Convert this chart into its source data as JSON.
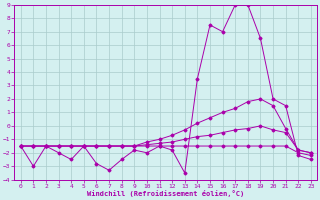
{
  "xlabel": "Windchill (Refroidissement éolien,°C)",
  "background_color": "#d4f0f0",
  "line_color": "#aa00aa",
  "grid_color": "#aacccc",
  "xlim": [
    -0.5,
    23.5
  ],
  "ylim": [
    -4,
    9
  ],
  "xticks": [
    0,
    1,
    2,
    3,
    4,
    5,
    6,
    7,
    8,
    9,
    10,
    11,
    12,
    13,
    14,
    15,
    16,
    17,
    18,
    19,
    20,
    21,
    22,
    23
  ],
  "yticks": [
    -4,
    -3,
    -2,
    -1,
    0,
    1,
    2,
    3,
    4,
    5,
    6,
    7,
    8,
    9
  ],
  "line1_x": [
    0,
    1,
    2,
    3,
    4,
    5,
    6,
    7,
    8,
    9,
    10,
    11,
    12,
    13,
    14,
    15,
    16,
    17,
    18,
    19,
    20,
    21,
    22,
    23
  ],
  "line1_y": [
    -1.5,
    -3.0,
    -1.5,
    -2.0,
    -2.5,
    -1.5,
    -2.8,
    -3.3,
    -2.5,
    -1.8,
    -2.0,
    -1.5,
    -1.8,
    -3.5,
    3.5,
    7.5,
    7.0,
    9.0,
    9.0,
    6.5,
    2.0,
    1.5,
    -2.2,
    -2.5
  ],
  "line2_x": [
    0,
    1,
    2,
    3,
    4,
    5,
    6,
    7,
    8,
    9,
    10,
    11,
    12,
    13,
    14,
    15,
    16,
    17,
    18,
    19,
    20,
    21,
    22,
    23
  ],
  "line2_y": [
    -1.5,
    -1.5,
    -1.5,
    -1.5,
    -1.5,
    -1.5,
    -1.5,
    -1.5,
    -1.5,
    -1.5,
    -1.2,
    -1.0,
    -0.7,
    -0.3,
    0.2,
    0.6,
    1.0,
    1.3,
    1.8,
    2.0,
    1.5,
    -0.2,
    -1.8,
    -2.0
  ],
  "line3_x": [
    0,
    1,
    2,
    3,
    4,
    5,
    6,
    7,
    8,
    9,
    10,
    11,
    12,
    13,
    14,
    15,
    16,
    17,
    18,
    19,
    20,
    21,
    22,
    23
  ],
  "line3_y": [
    -1.5,
    -1.5,
    -1.5,
    -1.5,
    -1.5,
    -1.5,
    -1.5,
    -1.5,
    -1.5,
    -1.5,
    -1.4,
    -1.3,
    -1.2,
    -1.0,
    -0.8,
    -0.7,
    -0.5,
    -0.3,
    -0.2,
    0.0,
    -0.3,
    -0.5,
    -1.8,
    -2.0
  ],
  "line4_x": [
    0,
    1,
    2,
    3,
    4,
    5,
    6,
    7,
    8,
    9,
    10,
    11,
    12,
    13,
    14,
    15,
    16,
    17,
    18,
    19,
    20,
    21,
    22,
    23
  ],
  "line4_y": [
    -1.5,
    -1.5,
    -1.5,
    -1.5,
    -1.5,
    -1.5,
    -1.5,
    -1.5,
    -1.5,
    -1.5,
    -1.5,
    -1.5,
    -1.5,
    -1.5,
    -1.5,
    -1.5,
    -1.5,
    -1.5,
    -1.5,
    -1.5,
    -1.5,
    -1.5,
    -2.0,
    -2.2
  ]
}
